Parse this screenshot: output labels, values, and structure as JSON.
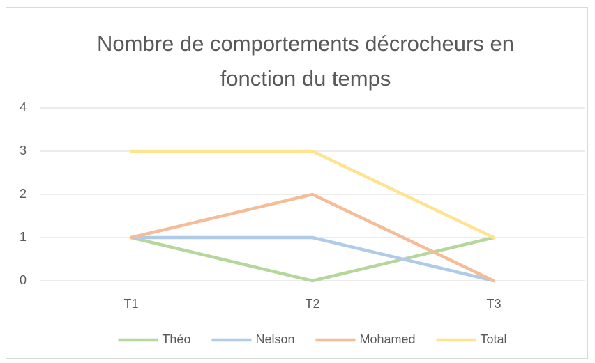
{
  "chart_data": {
    "type": "line",
    "title": "Nombre de comportements décrocheurs en fonction du temps",
    "categories": [
      "T1",
      "T2",
      "T3"
    ],
    "series": [
      {
        "name": "Théo",
        "color": "#b5d79b",
        "values": [
          1,
          0,
          1
        ]
      },
      {
        "name": "Nelson",
        "color": "#b0cbe9",
        "values": [
          1,
          1,
          0
        ]
      },
      {
        "name": "Mohamed",
        "color": "#f5bc98",
        "values": [
          1,
          2,
          0
        ]
      },
      {
        "name": "Total",
        "color": "#ffe38f",
        "values": [
          3,
          3,
          1
        ]
      }
    ],
    "ylim": [
      0,
      4
    ],
    "yticks": [
      0,
      1,
      2,
      3,
      4
    ],
    "grid": true,
    "legend": "bottom"
  }
}
